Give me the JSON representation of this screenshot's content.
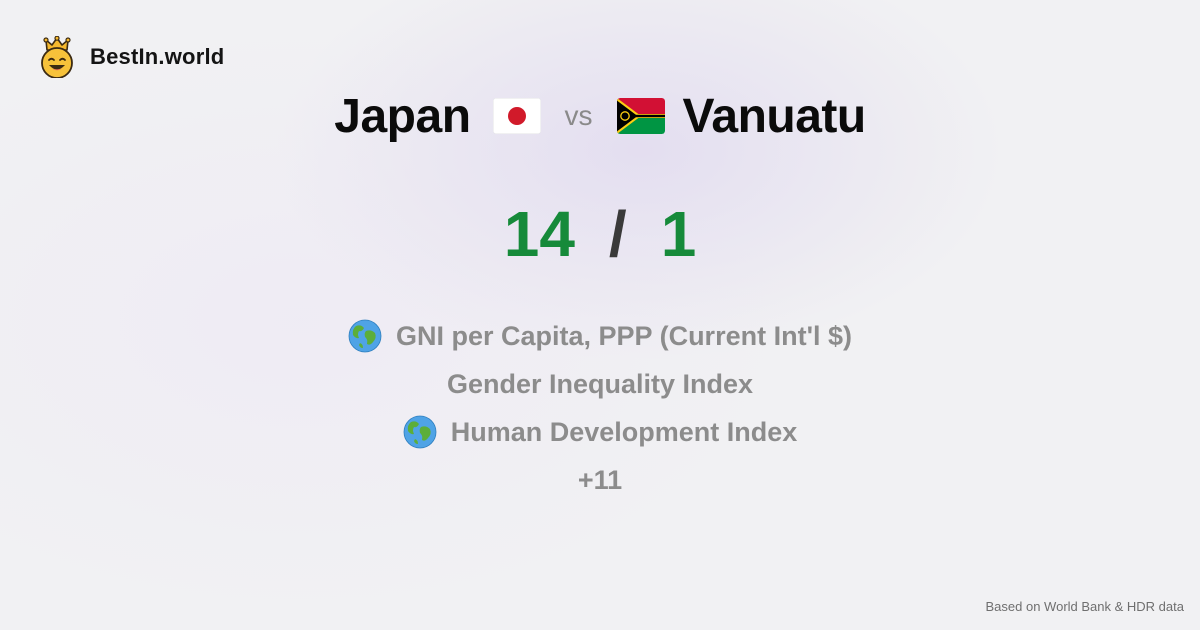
{
  "brand": {
    "name": "BestIn.world",
    "logo_icon": "crowned-smiley-icon"
  },
  "comparison": {
    "left_country": "Japan",
    "left_flag": "japan-flag-icon",
    "vs_label": "vs",
    "right_country": "Vanuatu",
    "right_flag": "vanuatu-flag-icon"
  },
  "score": {
    "left": "14",
    "separator": "/",
    "right": "1",
    "color": "#168a3a"
  },
  "indicators": [
    {
      "label": "GNI per Capita, PPP (Current Int'l $)",
      "icon": "globe-icon"
    },
    {
      "label": "Gender Inequality Index",
      "icon": ""
    },
    {
      "label": "Human Development Index",
      "icon": "globe-icon"
    }
  ],
  "more_label": "+11",
  "footer": {
    "source": "Based on World Bank & HDR data"
  }
}
